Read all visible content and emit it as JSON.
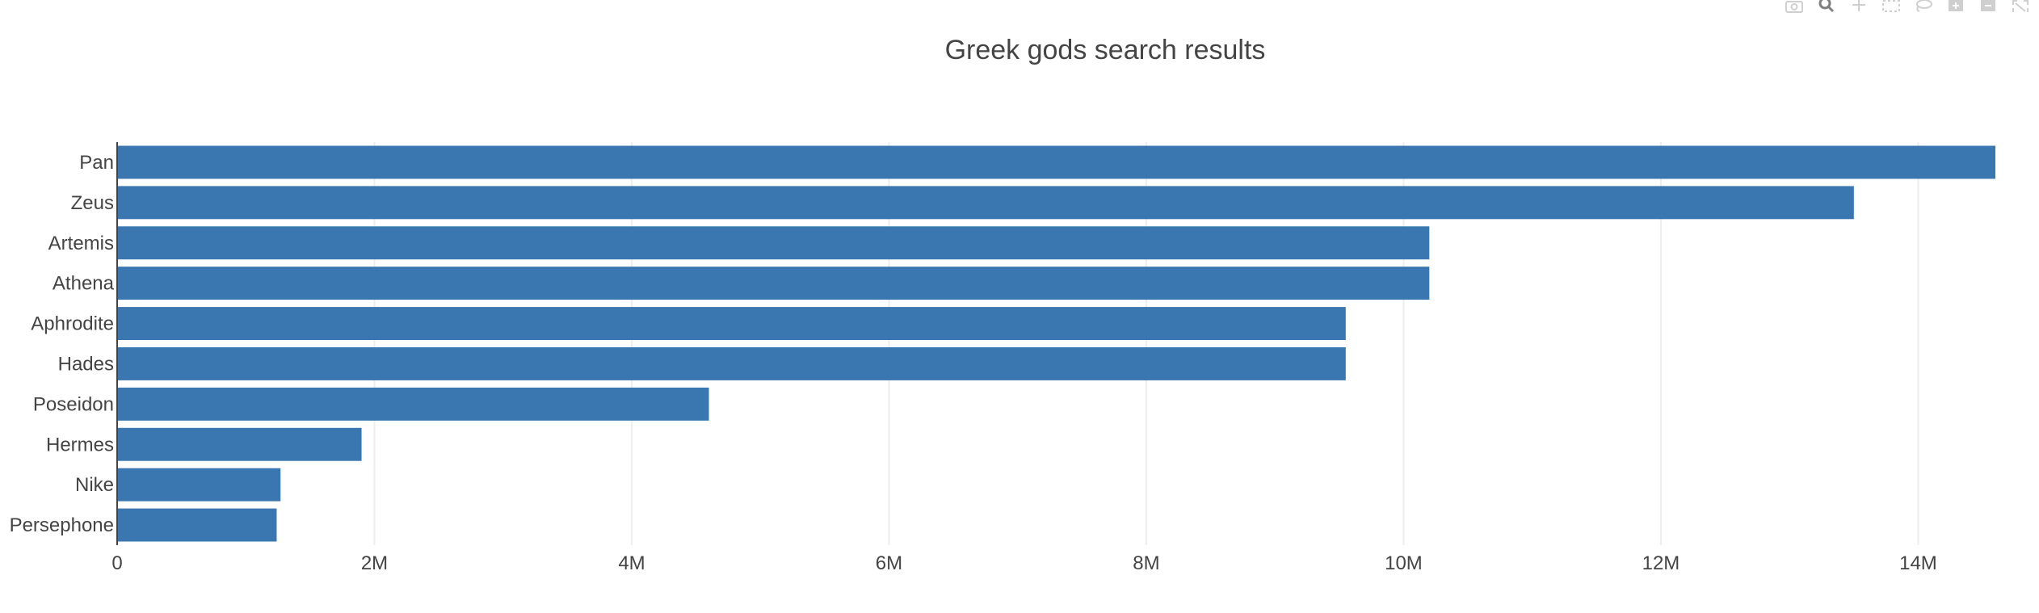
{
  "chart_data": {
    "type": "bar",
    "orientation": "horizontal",
    "title": "Greek gods search results",
    "xlabel": "",
    "ylabel": "",
    "categories": [
      "Pan",
      "Zeus",
      "Artemis",
      "Athena",
      "Aphrodite",
      "Hades",
      "Poseidon",
      "Hermes",
      "Nike",
      "Persephone"
    ],
    "values": [
      14600000,
      13500000,
      10200000,
      10200000,
      9550000,
      9550000,
      4600000,
      1900000,
      1270000,
      1240000
    ],
    "xlim": [
      0,
      14600000
    ],
    "xticks": [
      0,
      2000000,
      4000000,
      6000000,
      8000000,
      10000000,
      12000000,
      14000000
    ],
    "xtick_labels": [
      "0",
      "2M",
      "4M",
      "6M",
      "8M",
      "10M",
      "12M",
      "14M"
    ],
    "grid": "vertical",
    "bar_color": "#3a76af",
    "legend": "none"
  },
  "toolbar": {
    "icons": [
      "camera-icon",
      "zoom-icon",
      "pan-icon",
      "box-select-icon",
      "lasso-icon",
      "zoom-in-icon",
      "zoom-out-icon",
      "autoscale-icon"
    ]
  }
}
